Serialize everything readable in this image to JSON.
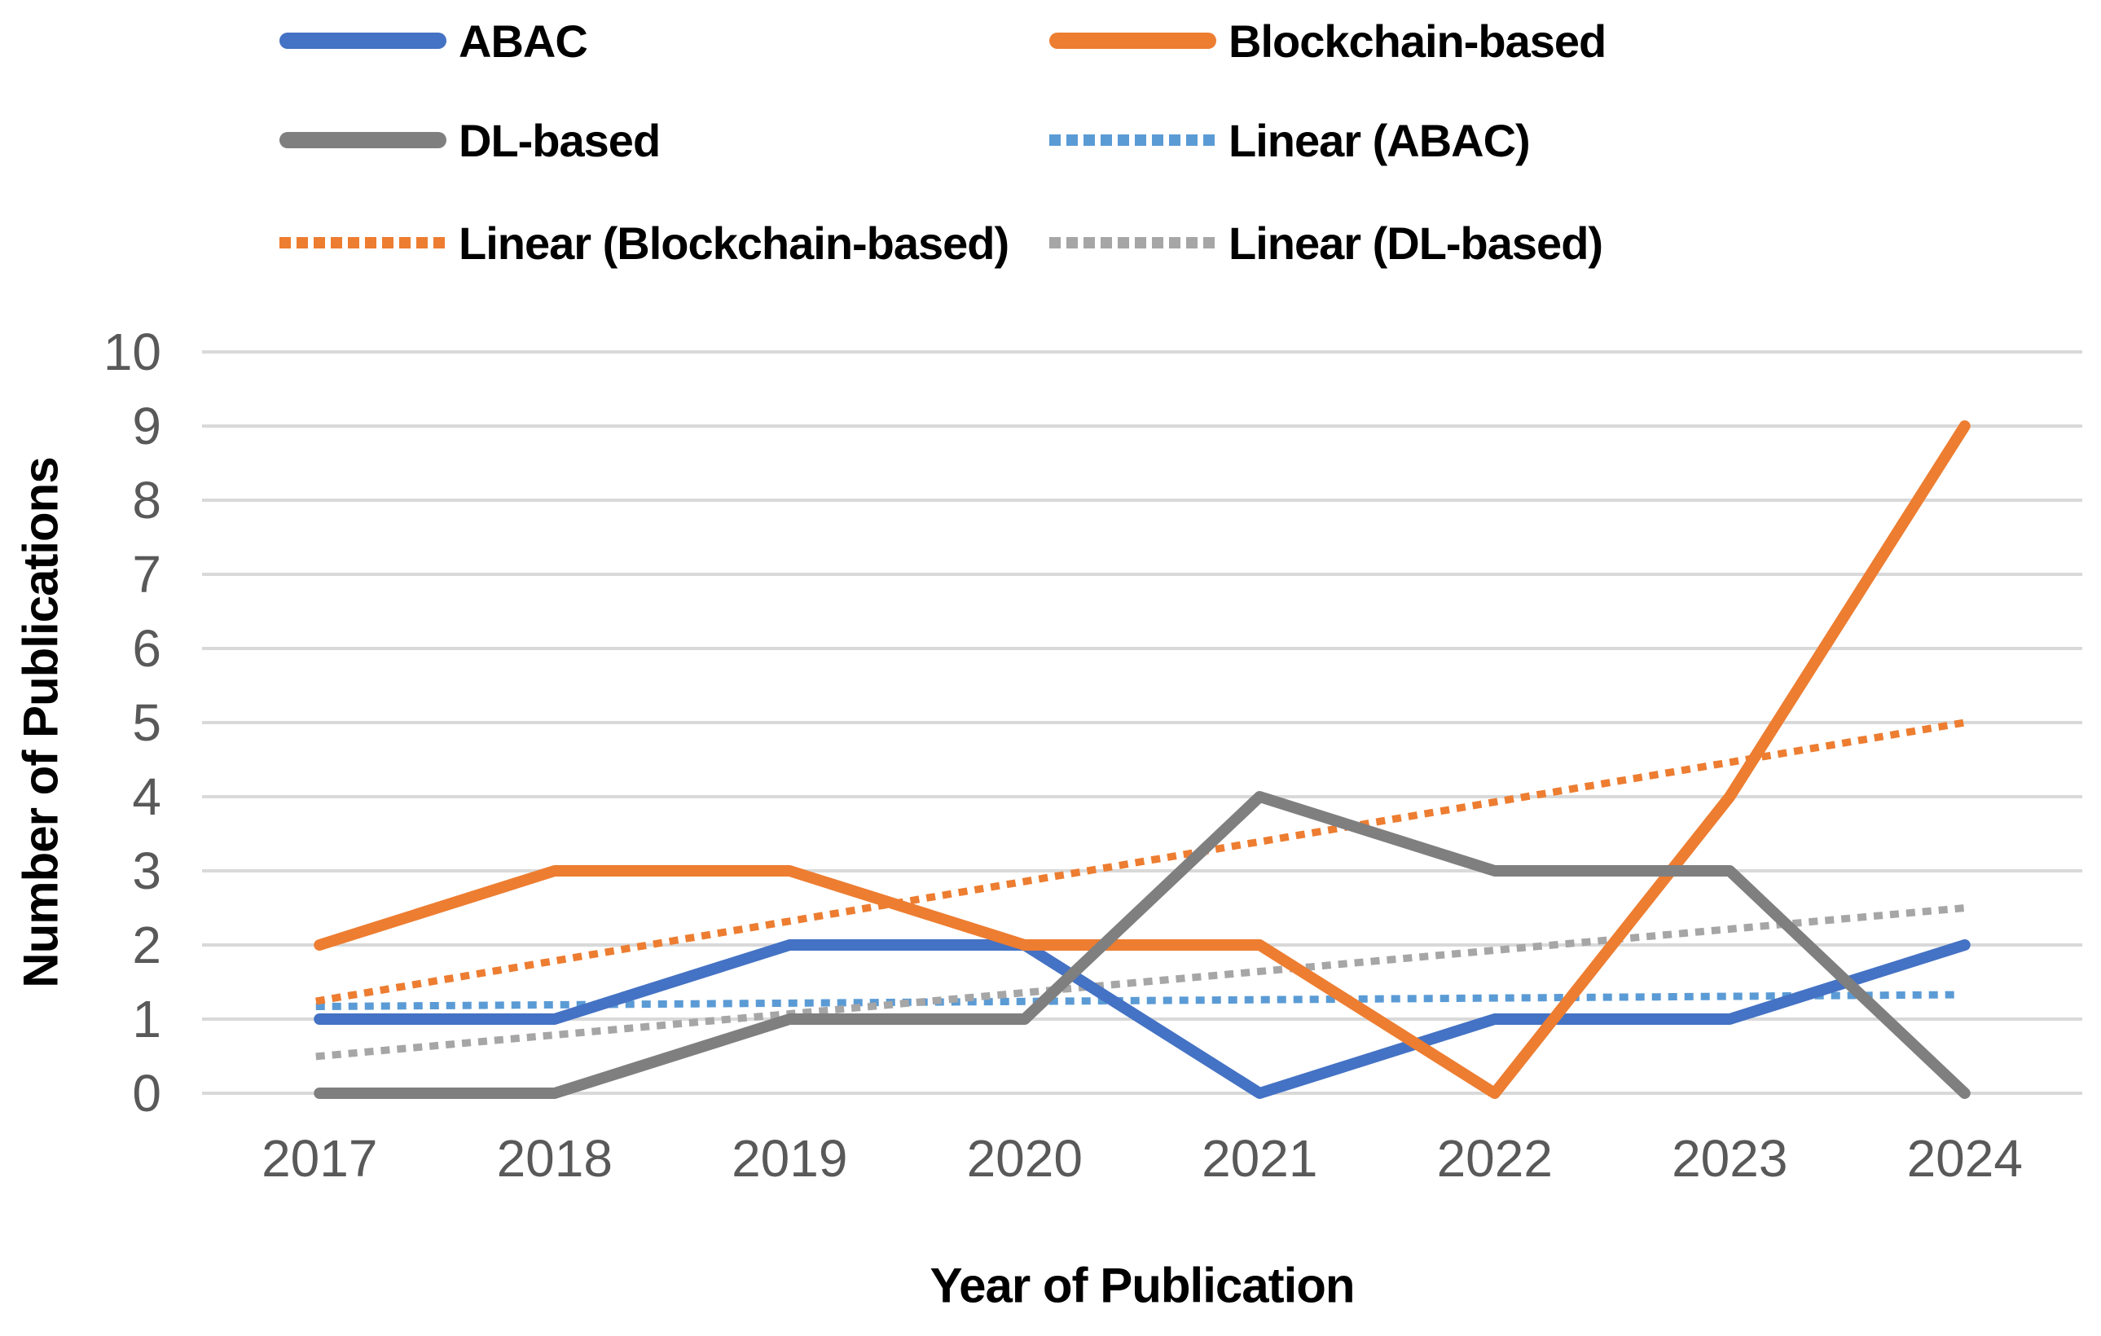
{
  "figure": {
    "background": "#ffffff",
    "tick_label_color": "#595959",
    "gridline_color": "#D9D9D9"
  },
  "legend": {
    "items": [
      {
        "label": "ABAC",
        "color": "#4472C4",
        "style": "solid"
      },
      {
        "label": "Blockchain-based",
        "color": "#ED7D31",
        "style": "solid"
      },
      {
        "label": "DL-based",
        "color": "#7F7F7F",
        "style": "solid"
      },
      {
        "label": "Linear (ABAC)",
        "color": "#5B9BD5",
        "style": "dotted"
      },
      {
        "label": "Linear (Blockchain-based)",
        "color": "#ED7D31",
        "style": "dotted"
      },
      {
        "label": "Linear (DL-based)",
        "color": "#A6A6A6",
        "style": "dotted"
      }
    ]
  },
  "chart_data": {
    "type": "line",
    "title": "",
    "xlabel": "Year of Publication",
    "ylabel": "Number of Publications",
    "categories": [
      "2017",
      "2018",
      "2019",
      "2020",
      "2021",
      "2022",
      "2023",
      "2024"
    ],
    "y_ticks": [
      0,
      1,
      2,
      3,
      4,
      5,
      6,
      7,
      8,
      9,
      10
    ],
    "ylim": [
      0,
      10
    ],
    "grid": true,
    "legend_position": "top",
    "series": [
      {
        "name": "ABAC",
        "color": "#4472C4",
        "style": "solid",
        "values": [
          1,
          1,
          2,
          2,
          0,
          1,
          1,
          2
        ]
      },
      {
        "name": "Blockchain-based",
        "color": "#ED7D31",
        "style": "solid",
        "values": [
          2,
          3,
          3,
          2,
          2,
          0,
          4,
          9
        ]
      },
      {
        "name": "DL-based",
        "color": "#7F7F7F",
        "style": "solid",
        "values": [
          0,
          0,
          1,
          1,
          4,
          3,
          3,
          0
        ]
      }
    ],
    "trendlines": [
      {
        "name": "Linear (ABAC)",
        "color": "#5B9BD5",
        "style": "dotted",
        "start": 1.17,
        "end": 1.33
      },
      {
        "name": "Linear (Blockchain-based)",
        "color": "#ED7D31",
        "style": "dotted",
        "start": 1.25,
        "end": 5.0
      },
      {
        "name": "Linear (DL-based)",
        "color": "#A6A6A6",
        "style": "dotted",
        "start": 0.5,
        "end": 2.5
      }
    ]
  }
}
